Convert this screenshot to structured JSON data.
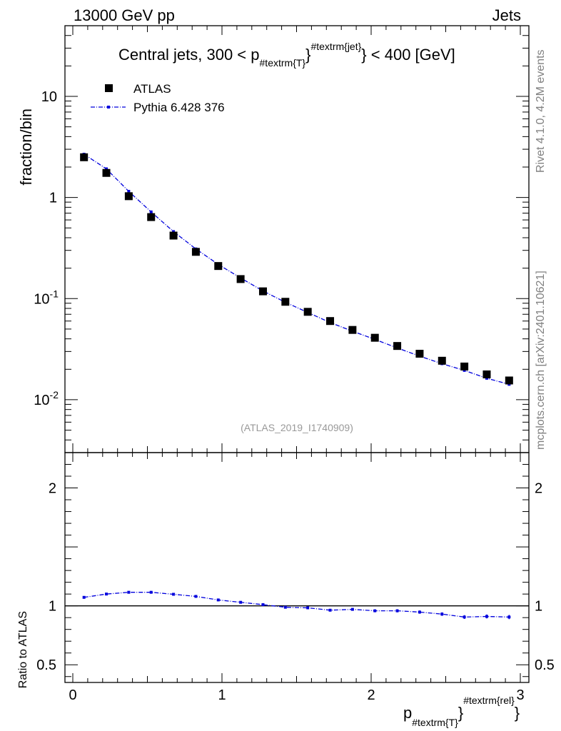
{
  "header": {
    "left": "13000 GeV pp",
    "right": "Jets"
  },
  "side": {
    "rivet": "Rivet 4.1.0,  4.2M events",
    "mcplots": "mcplots.cern.ch [arXiv:2401.10621]"
  },
  "chart_data": [
    {
      "type": "scatter",
      "panel": "main",
      "title_parts": [
        "Central jets, 300 < p",
        "#textrm{T}",
        "#textrm{jet}",
        "} < 400 [GeV]"
      ],
      "ylabel": "fraction/bin",
      "yscale": "log",
      "ylim": [
        0.003,
        50
      ],
      "xlim": [
        -0.05,
        3.05
      ],
      "yticks": [
        {
          "base": "10",
          "exp": "-2",
          "value": 0.01
        },
        {
          "base": "10",
          "exp": "-1",
          "value": 0.1
        },
        {
          "base": "1",
          "exp": "",
          "value": 1
        },
        {
          "base": "10",
          "exp": "",
          "value": 10
        }
      ],
      "legend": [
        {
          "name": "ATLAS",
          "marker": "square",
          "color": "#000000"
        },
        {
          "name": "Pythia 6.428 376",
          "marker": "dash-dot-line",
          "color": "#0000dd"
        }
      ],
      "watermark": "(ATLAS_2019_I1740909)",
      "x": [
        0.075,
        0.225,
        0.375,
        0.525,
        0.675,
        0.825,
        0.975,
        1.125,
        1.275,
        1.425,
        1.575,
        1.725,
        1.875,
        2.025,
        2.175,
        2.325,
        2.475,
        2.625,
        2.775,
        2.925
      ],
      "series": [
        {
          "name": "ATLAS",
          "values": [
            2.5,
            1.75,
            1.03,
            0.64,
            0.42,
            0.29,
            0.21,
            0.156,
            0.118,
            0.093,
            0.074,
            0.06,
            0.049,
            0.041,
            0.034,
            0.0285,
            0.0243,
            0.0213,
            0.0178,
            0.0155
          ]
        },
        {
          "name": "Pythia 6.428 376",
          "values": [
            2.68,
            1.92,
            1.15,
            0.72,
            0.46,
            0.31,
            0.218,
            0.16,
            0.119,
            0.092,
            0.073,
            0.058,
            0.0476,
            0.0395,
            0.0325,
            0.027,
            0.0227,
            0.0195,
            0.0163,
            0.0142
          ]
        }
      ]
    },
    {
      "type": "line",
      "panel": "ratio",
      "ylabel": "Ratio to ATLAS",
      "ylim": [
        0.35,
        2.3
      ],
      "yticks": [
        {
          "label": "0.5",
          "value": 0.5
        },
        {
          "label": "1",
          "value": 1
        },
        {
          "label": "2",
          "value": 2
        }
      ],
      "xticks": [
        {
          "label": "0",
          "value": 0
        },
        {
          "label": "1",
          "value": 1
        },
        {
          "label": "2",
          "value": 2
        },
        {
          "label": "3",
          "value": 3
        }
      ],
      "xlabel_parts": [
        "p",
        "#textrm{T}",
        "#textrm{rel}"
      ],
      "reference": 1,
      "x": [
        0.075,
        0.225,
        0.375,
        0.525,
        0.675,
        0.825,
        0.975,
        1.125,
        1.275,
        1.425,
        1.575,
        1.725,
        1.875,
        2.025,
        2.175,
        2.325,
        2.475,
        2.625,
        2.775,
        2.925
      ],
      "values": [
        1.072,
        1.1,
        1.115,
        1.115,
        1.098,
        1.08,
        1.05,
        1.03,
        1.01,
        0.988,
        0.983,
        0.963,
        0.97,
        0.958,
        0.958,
        0.947,
        0.93,
        0.905,
        0.91,
        0.905
      ],
      "errors": [
        0.005,
        0.005,
        0.006,
        0.006,
        0.006,
        0.007,
        0.007,
        0.008,
        0.008,
        0.009,
        0.009,
        0.01,
        0.011,
        0.012,
        0.013,
        0.014,
        0.015,
        0.016,
        0.017,
        0.018
      ]
    }
  ]
}
